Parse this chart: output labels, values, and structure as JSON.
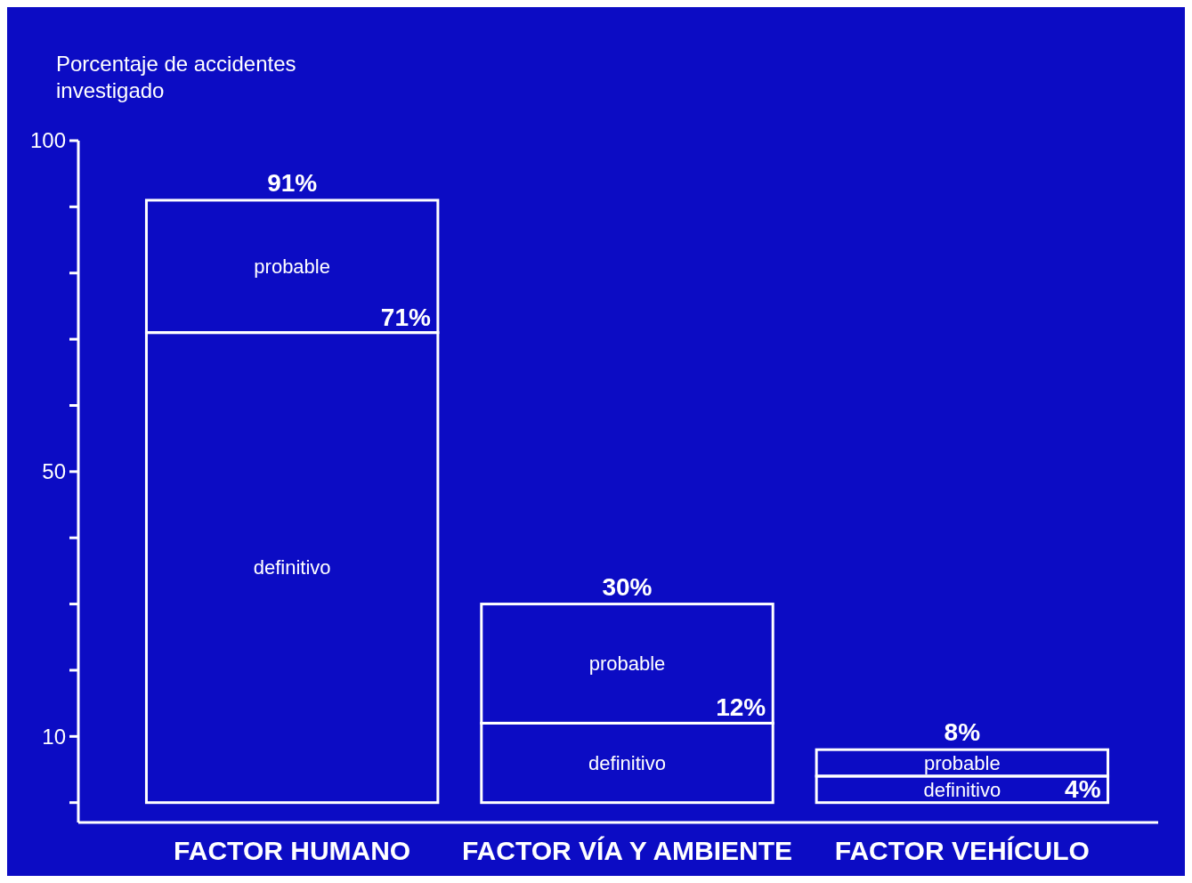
{
  "chart_data": {
    "type": "bar",
    "stacked": true,
    "ylabel": "Porcentaje de accidentes investigado",
    "categories": [
      "FACTOR HUMANO",
      "FACTOR VÍA Y AMBIENTE",
      "FACTOR VEHÍCULO"
    ],
    "series": [
      {
        "name": "definitivo",
        "color": "#ffffff",
        "values": [
          71,
          12,
          4
        ],
        "value_labels": [
          "71%",
          "12%",
          "4%"
        ]
      },
      {
        "name": "probable",
        "color": "#ffffff",
        "values": [
          20,
          18,
          4
        ]
      }
    ],
    "totals": [
      "91%",
      "30%",
      "8%"
    ],
    "ylim": [
      -3,
      100
    ],
    "yticks": [
      {
        "value": 0,
        "label": null
      },
      {
        "value": 10,
        "label": "10"
      },
      {
        "value": 20,
        "label": null
      },
      {
        "value": 30,
        "label": null
      },
      {
        "value": 40,
        "label": null
      },
      {
        "value": 50,
        "label": "50"
      },
      {
        "value": 60,
        "label": null
      },
      {
        "value": 70,
        "label": null
      },
      {
        "value": 80,
        "label": null
      },
      {
        "value": 90,
        "label": null
      },
      {
        "value": 100,
        "label": "100"
      }
    ],
    "grid": false
  }
}
